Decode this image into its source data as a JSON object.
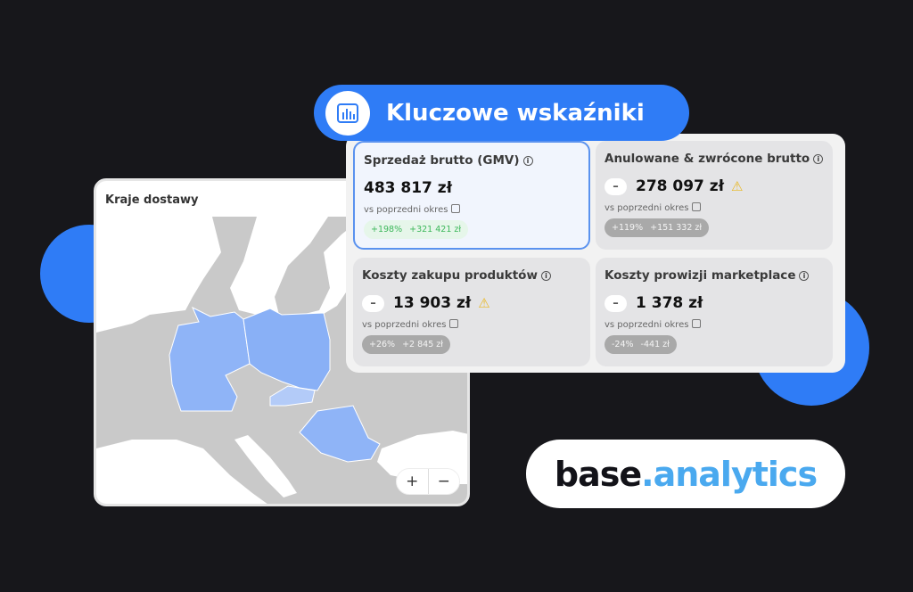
{
  "header": {
    "title": "Kluczowe wskaźniki",
    "icon": "bar-chart-icon"
  },
  "map": {
    "title": "Kraje dostawy",
    "zoom_in": "+",
    "zoom_out": "−",
    "highlighted_countries": [
      "Germany",
      "Poland",
      "Slovakia",
      "Romania"
    ]
  },
  "kpis": [
    {
      "title": "Sprzedaż brutto (GMV)",
      "value": "483 817 zł",
      "compare": "vs poprzedni okres",
      "pct": "+198%",
      "diff": "+321 421 zł",
      "active": true
    },
    {
      "title": "Anulowane & zwrócone brutto",
      "value": "278 097 zł",
      "compare": "vs poprzedni okres",
      "pct": "+119%",
      "diff": "+151 332 zł",
      "warning": true
    },
    {
      "title": "Koszty zakupu produktów",
      "value": "13 903 zł",
      "compare": "vs poprzedni okres",
      "pct": "+26%",
      "diff": "+2 845 zł",
      "warning": true
    },
    {
      "title": "Koszty prowizji marketplace",
      "value": "1 378 zł",
      "compare": "vs poprzedni okres",
      "pct": "-24%",
      "diff": "-441 zł"
    }
  ],
  "logo": {
    "part1": "base",
    "part2": ".analytics"
  },
  "colors": {
    "accent": "#2f7cf6",
    "highlight": "#8fb4f7",
    "logo_blue": "#4aa9ef"
  }
}
